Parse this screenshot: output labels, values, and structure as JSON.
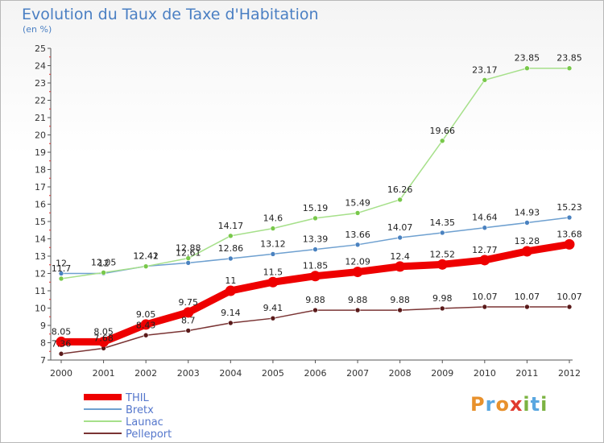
{
  "title": "Evolution du Taux de Taxe d'Habitation",
  "unit": "(en %)",
  "logo": {
    "text": "Proxiti",
    "colors": [
      "#e8912c",
      "#5aa7e0",
      "#e8912c",
      "#e03a2f",
      "#7cb342",
      "#5aa7e0",
      "#7cb342"
    ]
  },
  "chart_data": {
    "type": "line",
    "x": [
      "2000",
      "2001",
      "2002",
      "2003",
      "2004",
      "2005",
      "2006",
      "2007",
      "2008",
      "2009",
      "2010",
      "2011",
      "2012"
    ],
    "ylim": [
      7,
      25
    ],
    "yticks": [
      7,
      8,
      9,
      10,
      11,
      12,
      13,
      14,
      15,
      16,
      17,
      18,
      19,
      20,
      21,
      22,
      23,
      24,
      25
    ],
    "grid": false,
    "legend_position": "bottom-left",
    "series": [
      {
        "name": "THIL",
        "color": "#ee0000",
        "width": 9,
        "values": [
          8.05,
          8.05,
          9.05,
          9.75,
          11,
          11.5,
          11.85,
          12.09,
          12.4,
          12.52,
          12.77,
          13.28,
          13.68
        ],
        "labels": [
          "8.05",
          "8.05",
          "9.05",
          "9.75",
          "11",
          "11.5",
          "11.85",
          "12.09",
          "12.4",
          "12.52",
          "12.77",
          "13.28",
          "13.68"
        ]
      },
      {
        "name": "Bretx",
        "color": "#6ea0d0",
        "width": 1.5,
        "marker": "#4a82c0",
        "values": [
          12,
          12,
          12.42,
          12.61,
          12.86,
          13.12,
          13.39,
          13.66,
          14.07,
          14.35,
          14.64,
          14.93,
          15.23
        ],
        "labels": [
          "12",
          "12",
          "12.42",
          "12.61",
          "12.86",
          "13.12",
          "13.39",
          "13.66",
          "14.07",
          "14.35",
          "14.64",
          "14.93",
          "15.23"
        ]
      },
      {
        "name": "Launac",
        "color": "#a6e08a",
        "width": 1.5,
        "marker": "#78c84a",
        "values": [
          11.7,
          12.05,
          12.41,
          12.88,
          14.17,
          14.6,
          15.19,
          15.49,
          16.26,
          19.66,
          23.17,
          23.85,
          23.85
        ],
        "labels": [
          "11.7",
          "12.05",
          "12.41",
          "12.88",
          "14.17",
          "14.6",
          "15.19",
          "15.49",
          "16.26",
          "19.66",
          "23.17",
          "23.85",
          "23.85"
        ]
      },
      {
        "name": "Pelleport",
        "color": "#7a3434",
        "width": 1.5,
        "marker": "#5a1a1a",
        "values": [
          7.36,
          7.68,
          8.43,
          8.7,
          9.14,
          9.41,
          9.88,
          9.88,
          9.88,
          9.98,
          10.07,
          10.07,
          10.07
        ],
        "labels": [
          "7.36",
          "7.68",
          "8.43",
          "8.7",
          "9.14",
          "9.41",
          "9.88",
          "9.88",
          "9.88",
          "9.98",
          "10.07",
          "10.07",
          "10.07"
        ]
      }
    ]
  }
}
